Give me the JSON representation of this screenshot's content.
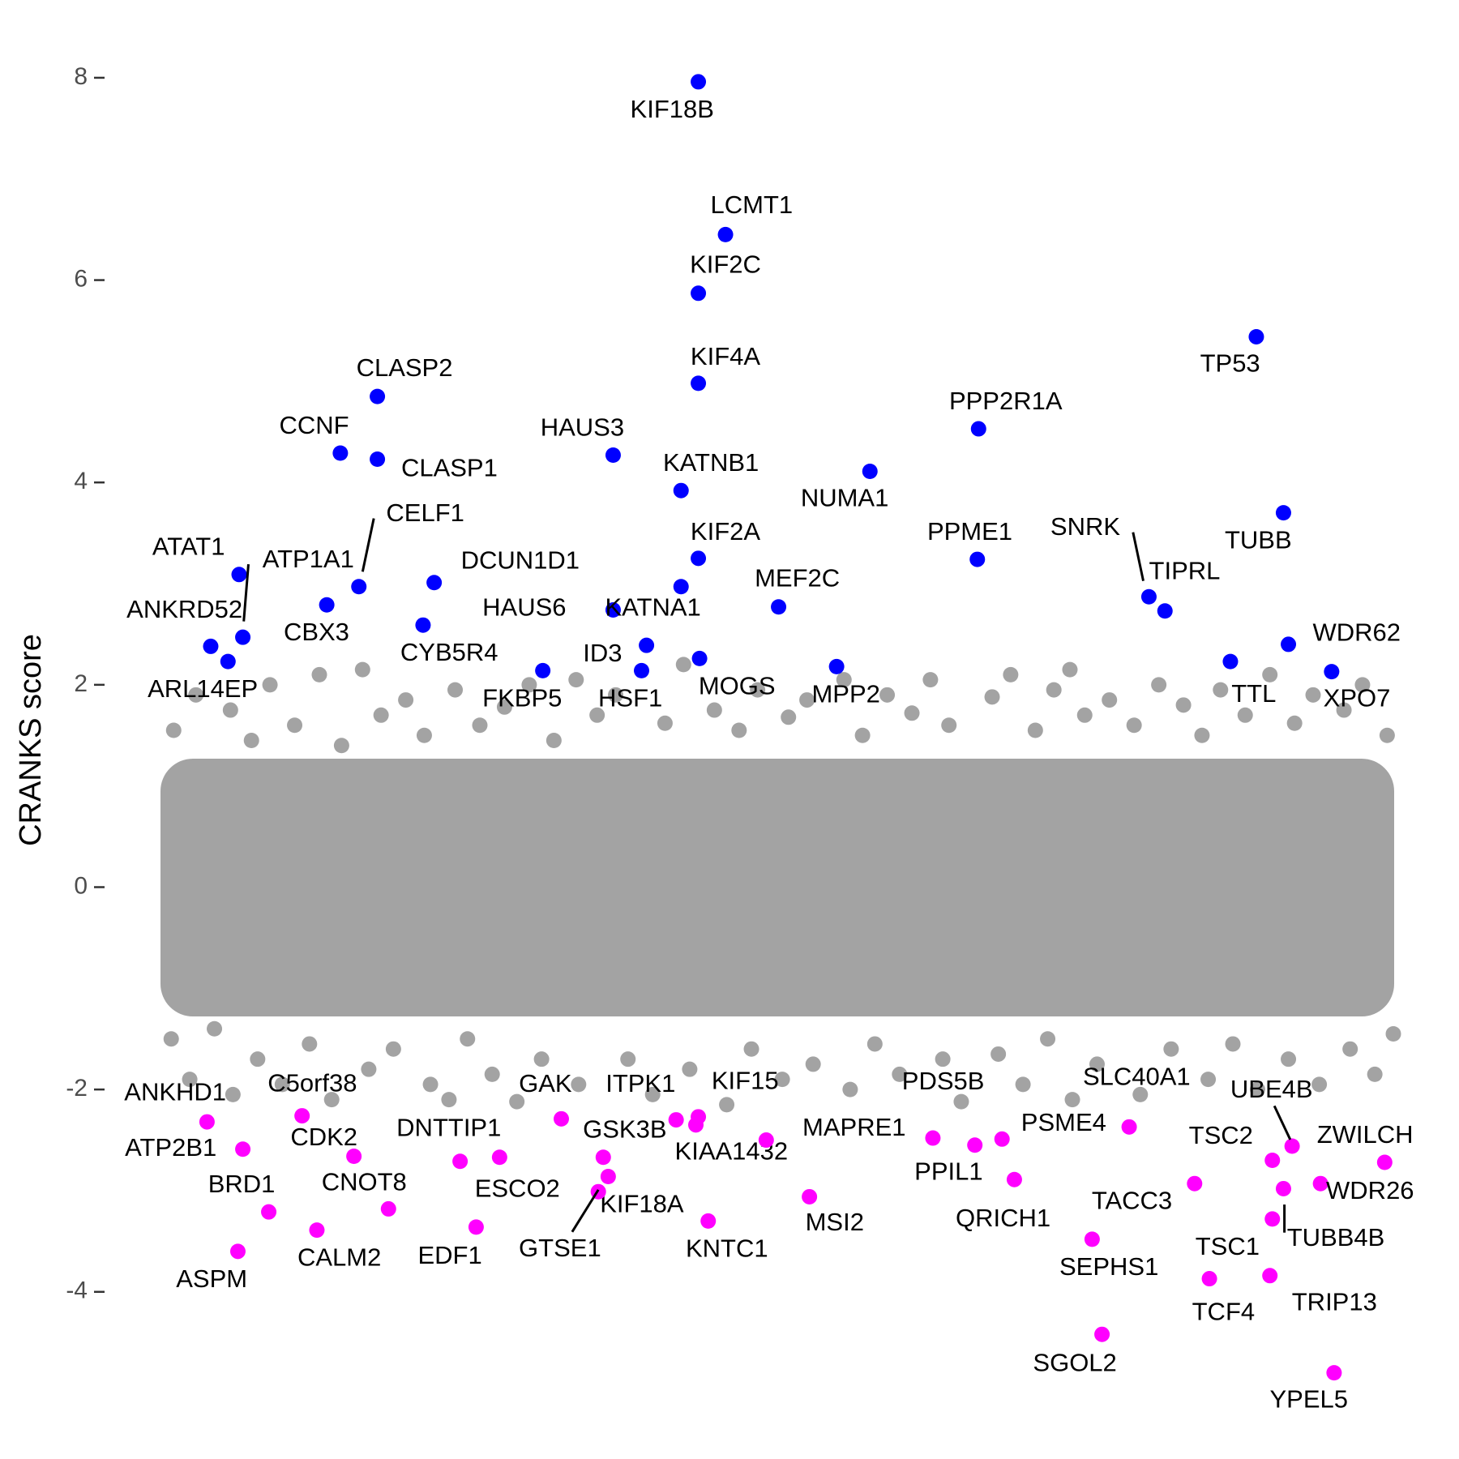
{
  "chart_data": {
    "type": "scatter",
    "y_label": "CRANKS score",
    "xlim": [
      0,
      100
    ],
    "ylim": [
      -5.5,
      8.4
    ],
    "yticks": [
      -4,
      -2,
      0,
      2,
      4,
      6,
      8
    ],
    "series": [
      {
        "color": "#a3a3a3",
        "x": [
          1.2,
          3,
          5.8,
          7.5,
          9,
          11,
          13,
          14.8,
          16.5,
          18,
          20,
          21.5,
          24,
          26,
          28,
          30,
          32,
          33.8,
          35.5,
          37,
          41,
          42.5,
          45,
          47,
          48.5,
          51,
          52.5,
          55.5,
          57,
          59,
          61,
          62.5,
          64,
          67.5,
          69,
          71,
          72.5,
          73.8,
          75,
          77,
          79,
          81,
          83,
          84.5,
          86,
          88,
          90,
          92,
          93.5,
          96,
          97.5,
          99.5,
          1,
          2.5,
          4.5,
          6,
          8,
          10,
          12.2,
          14,
          17,
          19,
          22,
          23.5,
          25,
          27,
          29,
          31,
          34,
          38,
          40,
          43,
          46,
          48,
          50.5,
          53,
          56,
          58,
          60,
          63.5,
          65,
          68,
          70,
          72,
          74,
          76,
          79.5,
          82,
          85,
          87,
          89,
          91.5,
          94,
          96.5,
          98.5,
          100
        ],
        "values": [
          1.55,
          1.9,
          1.75,
          1.45,
          2.0,
          1.6,
          2.1,
          1.4,
          2.15,
          1.7,
          1.85,
          1.5,
          1.95,
          1.6,
          1.78,
          2.0,
          1.45,
          2.05,
          1.7,
          1.9,
          1.62,
          2.2,
          1.75,
          1.55,
          1.95,
          1.68,
          1.85,
          2.05,
          1.5,
          1.9,
          1.72,
          2.05,
          1.6,
          1.88,
          2.1,
          1.55,
          1.95,
          2.15,
          1.7,
          1.85,
          1.6,
          2.0,
          1.8,
          1.5,
          1.95,
          1.7,
          2.1,
          1.62,
          1.9,
          1.75,
          2.0,
          1.5,
          -1.5,
          -1.9,
          -1.4,
          -2.05,
          -1.7,
          -1.95,
          -1.55,
          -2.1,
          -1.8,
          -1.6,
          -1.95,
          -2.1,
          -1.5,
          -1.85,
          -2.12,
          -1.7,
          -1.95,
          -1.7,
          -2.05,
          -1.8,
          -2.15,
          -1.6,
          -1.9,
          -1.75,
          -2.0,
          -1.55,
          -1.85,
          -1.7,
          -2.12,
          -1.65,
          -1.95,
          -1.5,
          -2.1,
          -1.75,
          -2.05,
          -1.6,
          -1.9,
          -1.55,
          -2.0,
          -1.7,
          -1.95,
          -1.6,
          -1.85,
          -1.45
        ]
      },
      {
        "color": "#0000ff",
        "labels": [
          "KIF18B",
          "LCMT1",
          "KIF2C",
          "KIF4A",
          "TP53",
          "CLASP2",
          "PPP2R1A",
          "CCNF",
          "CLASP1",
          "HAUS3",
          "KATNB1",
          "NUMA1",
          "TUBB",
          "CELF1",
          "ATAT1",
          "ATP1A1",
          "ANKRD52",
          "ARL14EP",
          "DCUN1D1",
          "CBX3",
          "CYB5R4",
          "KIF2A",
          "HAUS6",
          "KATNA1",
          "ID3",
          "HSF1",
          "FKBP5",
          "MOGS",
          "MEF2C",
          "MPP2",
          "PPME1",
          "SNRK",
          "TIPRL",
          "TTL",
          "WDR62",
          "XPO7"
        ],
        "x": [
          43.7,
          45.9,
          43.7,
          43.7,
          88.9,
          17.7,
          66.4,
          14.7,
          17.7,
          36.8,
          42.3,
          57.6,
          91.1,
          16.2,
          6.5,
          6.8,
          4.2,
          5.6,
          22.3,
          13.6,
          21.4,
          43.7,
          36.8,
          42.3,
          39.5,
          39.1,
          31.1,
          43.8,
          50.2,
          54.9,
          66.3,
          80.2,
          81.5,
          86.8,
          91.5,
          95.0
        ],
        "values": [
          7.96,
          6.45,
          5.87,
          4.98,
          5.44,
          4.85,
          4.53,
          4.29,
          4.23,
          4.27,
          3.92,
          4.11,
          3.7,
          2.97,
          3.09,
          2.47,
          2.38,
          2.23,
          3.01,
          2.79,
          2.59,
          3.25,
          2.74,
          2.97,
          2.39,
          2.14,
          2.14,
          2.26,
          2.77,
          2.18,
          3.24,
          2.87,
          2.73,
          2.23,
          2.4,
          2.13
        ]
      },
      {
        "color": "#ff00ff",
        "labels": [
          "ANKHD1",
          "ATP2B1",
          "C5orf38",
          "CDK2",
          "BRD1",
          "CNOT8",
          "CALM2",
          "ASPM",
          "DNTTIP1",
          "ESCO2",
          "EDF1",
          "GAK",
          "GSK3B",
          "KIF18A",
          "GTSE1",
          "ITPK1",
          "KIF15",
          "KIAA1432",
          "MAPRE1",
          "KNTC1",
          "MSI2",
          "PDS5B",
          "PPIL1",
          "PSME4",
          "QRICH1",
          "SLC40A1",
          "TACC3",
          "SEPHS1",
          "SGOL2",
          "TSC2",
          "UBE4B",
          "ZWILCH",
          "WDR26",
          "TUBB4B",
          "TSC1",
          "TCF4",
          "TRIP13",
          "YPEL5"
        ],
        "x": [
          3.9,
          6.8,
          11.6,
          15.8,
          8.9,
          18.6,
          12.8,
          6.4,
          24.4,
          27.6,
          25.7,
          32.6,
          36.0,
          36.4,
          35.6,
          41.9,
          43.7,
          43.5,
          49.2,
          44.5,
          52.7,
          62.7,
          66.1,
          68.3,
          69.3,
          78.6,
          83.9,
          75.6,
          76.4,
          90.2,
          91.8,
          99.3,
          94.1,
          91.1,
          90.2,
          85.1,
          90.0,
          95.2
        ],
        "values": [
          -2.32,
          -2.59,
          -2.26,
          -2.66,
          -3.21,
          -3.18,
          -3.39,
          -3.6,
          -2.71,
          -2.67,
          -3.36,
          -2.29,
          -2.67,
          -2.86,
          -3.01,
          -2.3,
          -2.27,
          -2.35,
          -2.5,
          -3.3,
          -3.06,
          -2.48,
          -2.55,
          -2.49,
          -2.89,
          -2.37,
          -2.93,
          -3.48,
          -4.42,
          -2.7,
          -2.56,
          -2.72,
          -2.93,
          -2.98,
          -3.28,
          -3.87,
          -3.84,
          -4.8
        ]
      }
    ]
  }
}
